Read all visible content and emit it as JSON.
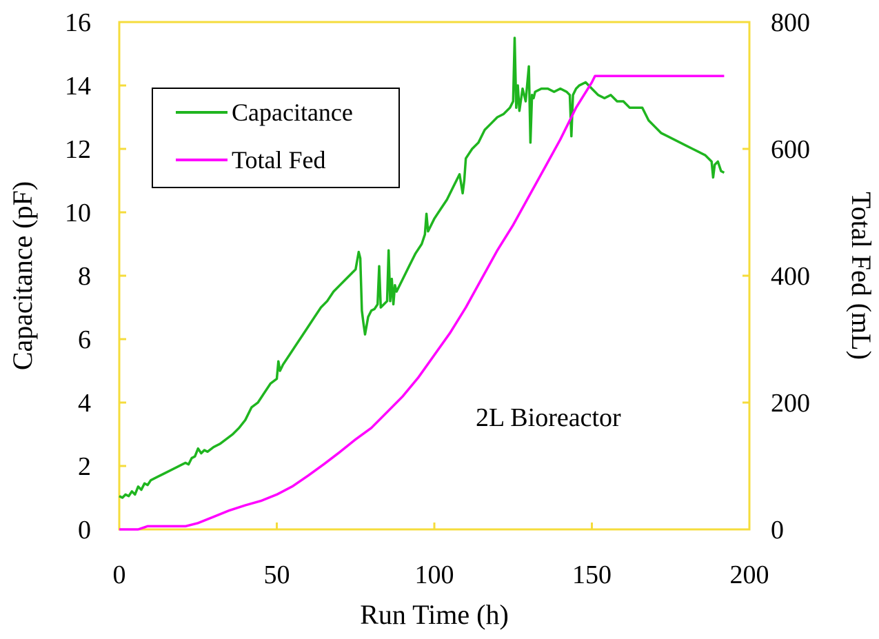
{
  "chart_data": {
    "type": "line",
    "title": "",
    "xlabel": "Run Time (h)",
    "ylabel_left": "Capacitance (pF)",
    "ylabel_right": "Total Fed (mL)",
    "xlim": [
      0,
      200
    ],
    "ylim_left": [
      0,
      16
    ],
    "ylim_right": [
      0,
      800
    ],
    "xticks": [
      "0",
      "50",
      "100",
      "150",
      "200"
    ],
    "yticks_left": [
      "0",
      "2",
      "4",
      "6",
      "8",
      "10",
      "12",
      "14",
      "16"
    ],
    "yticks_right": [
      "0",
      "200",
      "400",
      "600",
      "800"
    ],
    "grid": false,
    "legend_position": "top-left",
    "annotation": "2L Bioreactor",
    "colors": {
      "frame": "#f5dc3c",
      "capacitance": "#1fb51f",
      "total_fed": "#ff00ff"
    },
    "series": [
      {
        "name": "Capacitance",
        "axis": "left",
        "x": [
          0,
          1,
          2,
          3,
          4,
          5,
          6,
          7,
          8,
          9,
          10,
          12,
          14,
          16,
          18,
          20,
          21,
          22,
          23,
          24,
          25,
          26,
          27,
          28,
          30,
          32,
          34,
          36,
          38,
          40,
          42,
          44,
          46,
          48,
          50,
          50.5,
          51,
          51.5,
          52,
          54,
          56,
          58,
          60,
          62,
          64,
          66,
          68,
          70,
          72,
          74,
          75,
          76,
          76.5,
          77,
          77.5,
          78,
          79,
          80,
          81,
          82,
          82.5,
          83,
          84,
          85,
          85.5,
          86,
          86.5,
          87,
          87.5,
          88,
          90,
          92,
          94,
          96,
          97,
          97.5,
          98,
          100,
          102,
          104,
          106,
          108,
          109,
          109.5,
          110,
          112,
          114,
          116,
          118,
          120,
          122,
          124,
          125,
          125.5,
          126,
          126.5,
          127,
          128,
          129,
          130,
          130.5,
          131,
          131.5,
          132,
          134,
          136,
          138,
          140,
          142,
          143,
          143.5,
          144,
          145,
          146,
          148,
          150,
          152,
          154,
          156,
          158,
          160,
          162,
          164,
          166,
          167,
          168,
          170,
          172,
          174,
          176,
          178,
          180,
          182,
          184,
          186,
          188,
          188.5,
          189,
          190,
          191,
          192
        ],
        "y": [
          1.05,
          1.0,
          1.1,
          1.05,
          1.2,
          1.1,
          1.35,
          1.25,
          1.45,
          1.4,
          1.55,
          1.65,
          1.75,
          1.85,
          1.95,
          2.05,
          2.1,
          2.05,
          2.25,
          2.3,
          2.55,
          2.4,
          2.5,
          2.45,
          2.6,
          2.7,
          2.85,
          3.0,
          3.2,
          3.45,
          3.85,
          4.0,
          4.3,
          4.6,
          4.75,
          5.3,
          5.0,
          5.1,
          5.2,
          5.5,
          5.8,
          6.1,
          6.4,
          6.7,
          7.0,
          7.2,
          7.5,
          7.7,
          7.9,
          8.1,
          8.2,
          8.75,
          8.55,
          6.9,
          6.5,
          6.15,
          6.7,
          6.9,
          6.95,
          7.1,
          8.3,
          7.0,
          7.1,
          7.2,
          8.8,
          7.2,
          7.9,
          7.1,
          7.7,
          7.5,
          7.9,
          8.3,
          8.7,
          9.0,
          9.3,
          9.95,
          9.4,
          9.8,
          10.1,
          10.4,
          10.8,
          11.2,
          10.6,
          11.0,
          11.7,
          12.0,
          12.2,
          12.6,
          12.8,
          13.0,
          13.1,
          13.3,
          13.5,
          15.5,
          13.3,
          14.0,
          13.2,
          13.9,
          13.5,
          14.6,
          12.2,
          13.7,
          13.6,
          13.8,
          13.9,
          13.9,
          13.8,
          13.9,
          13.8,
          13.7,
          12.4,
          13.7,
          13.9,
          14.0,
          14.1,
          13.9,
          13.7,
          13.6,
          13.7,
          13.5,
          13.5,
          13.3,
          13.3,
          13.3,
          13.1,
          12.9,
          12.7,
          12.5,
          12.4,
          12.3,
          12.2,
          12.1,
          12.0,
          11.9,
          11.8,
          11.6,
          11.1,
          11.5,
          11.6,
          11.3,
          11.25
        ]
      },
      {
        "name": "Total Fed",
        "axis": "right",
        "x": [
          0,
          3,
          6,
          9,
          15,
          21,
          25,
          30,
          35,
          40,
          45,
          50,
          55,
          60,
          65,
          70,
          75,
          80,
          85,
          90,
          95,
          100,
          105,
          110,
          115,
          120,
          125,
          130,
          135,
          140,
          145,
          150,
          151,
          160,
          170,
          180,
          192
        ],
        "y": [
          0,
          0,
          0,
          5,
          5,
          5,
          10,
          20,
          30,
          38,
          45,
          55,
          68,
          85,
          103,
          122,
          142,
          160,
          185,
          210,
          240,
          275,
          310,
          350,
          395,
          440,
          480,
          525,
          570,
          615,
          665,
          705,
          715,
          715,
          715,
          715,
          715
        ]
      }
    ]
  }
}
